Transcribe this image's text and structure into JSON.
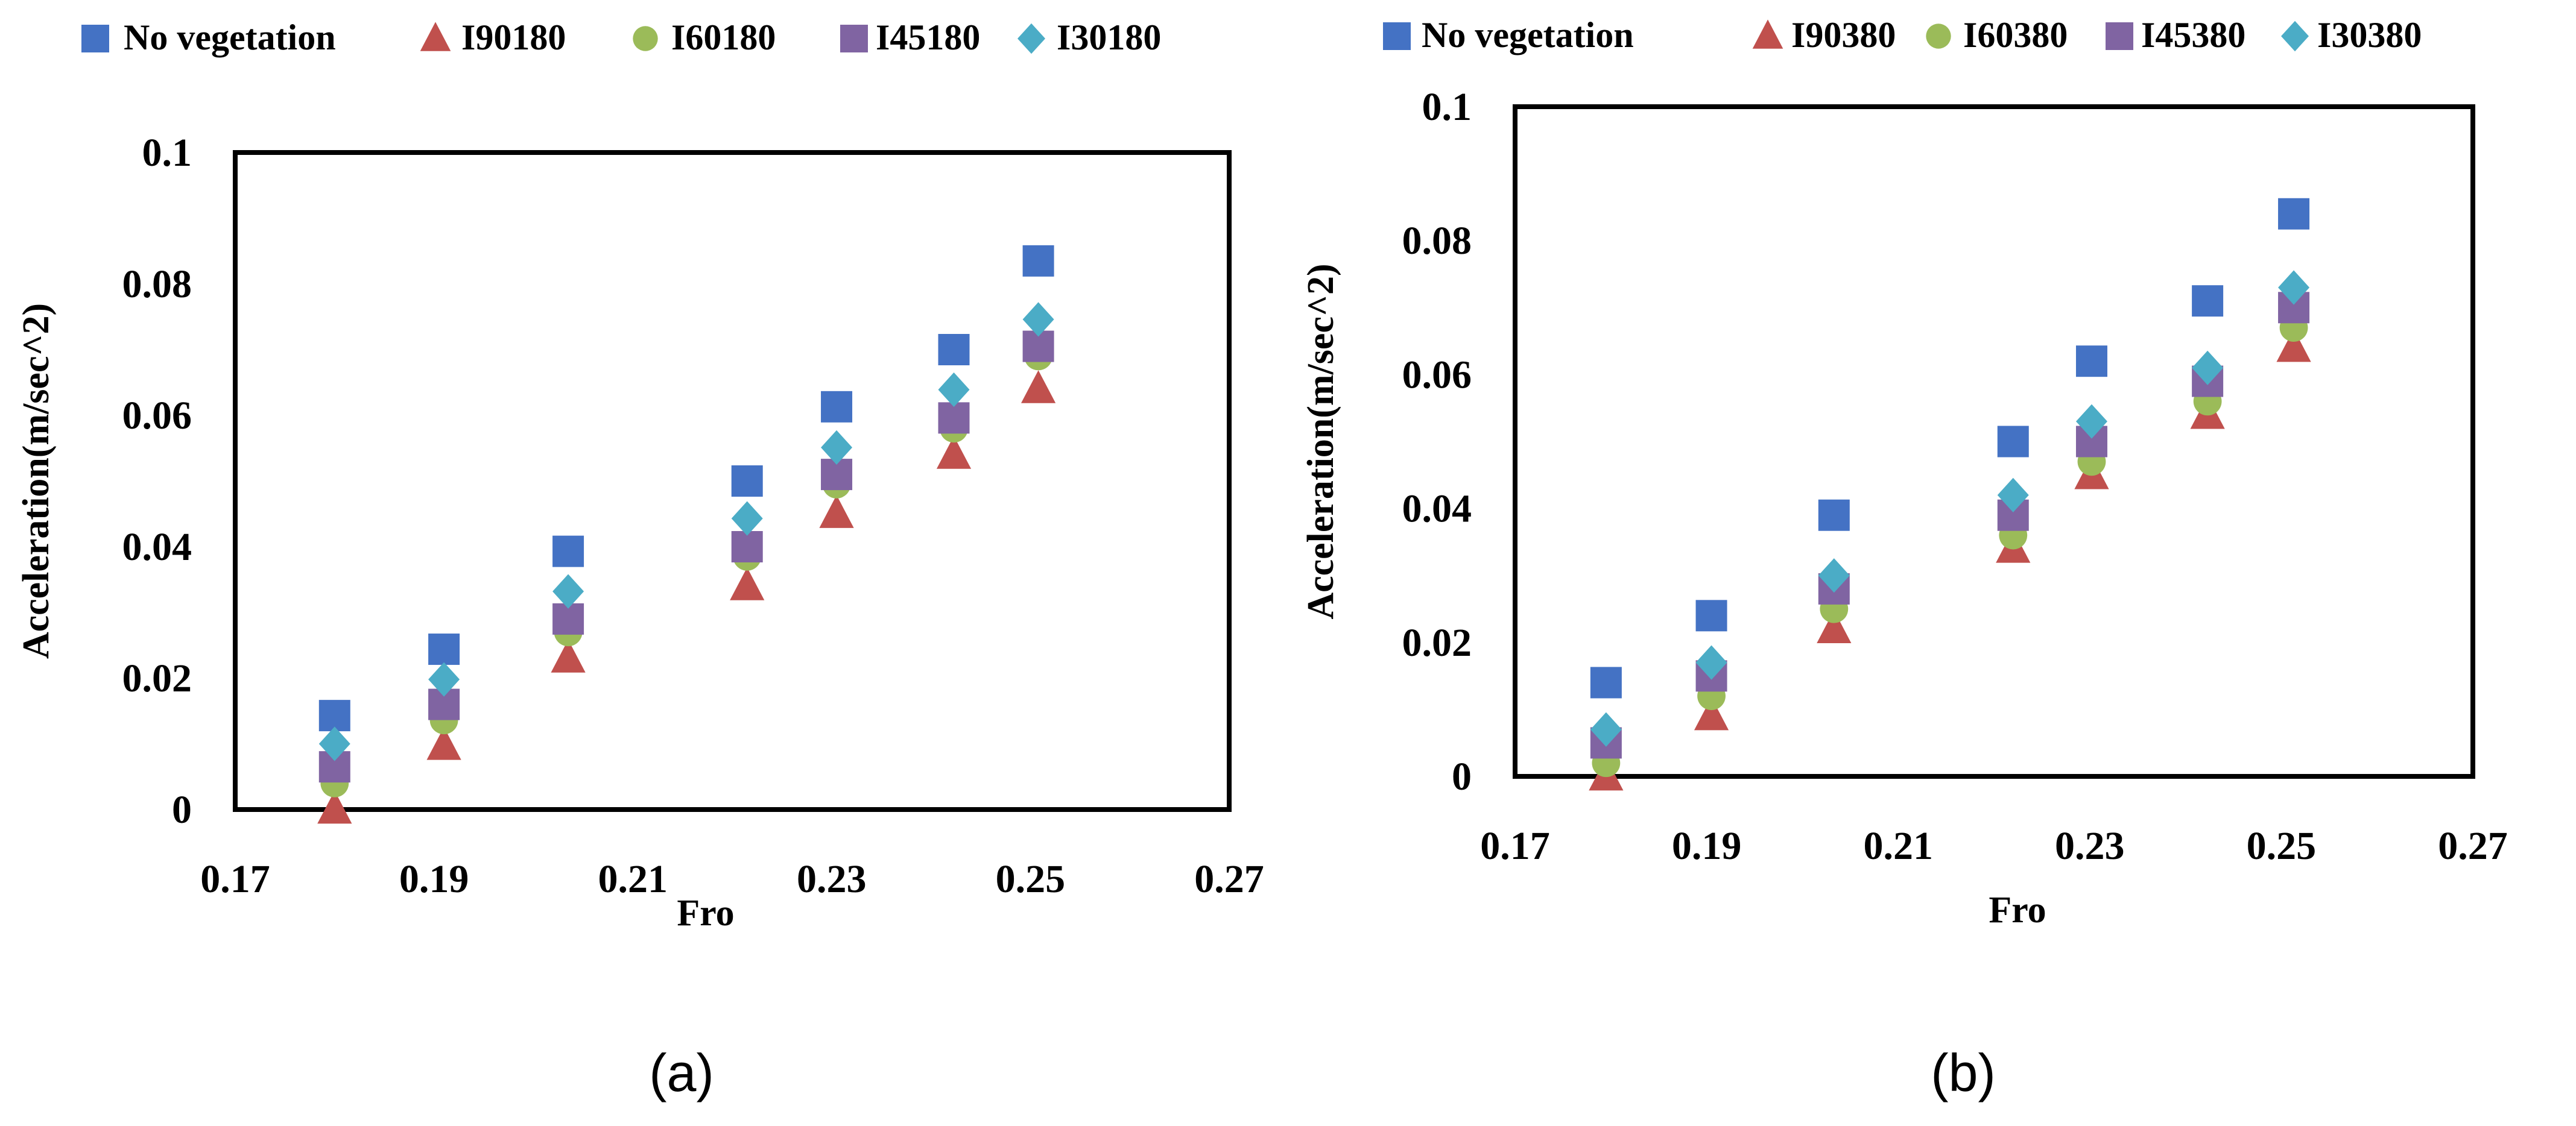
{
  "captions": [
    "(a)",
    "(b)"
  ],
  "colors": {
    "No vegetation": "#4472C4",
    "I90": "#C0504D",
    "I60": "#9BBB59",
    "I45": "#8064A2",
    "I30": "#4BACC6"
  },
  "chart_data": [
    {
      "type": "scatter",
      "title": "",
      "xlabel": "Fro",
      "ylabel": "Acceleration(m/sec^2)",
      "xlim": [
        0.17,
        0.27
      ],
      "ylim": [
        0,
        0.1
      ],
      "xticks": [
        "0.17",
        "0.19",
        "0.21",
        "0.23",
        "0.25",
        "0.27"
      ],
      "yticks": [
        "0",
        "0.02",
        "0.04",
        "0.06",
        "0.08",
        "0.1"
      ],
      "grid": false,
      "legend": "top",
      "x": [
        0.18,
        0.191,
        0.2035,
        0.2215,
        0.2305,
        0.2423,
        0.2508
      ],
      "series": [
        {
          "name": "No vegetation",
          "marker": "square",
          "color": "#4472C4",
          "values": [
            0.0143,
            0.0244,
            0.0393,
            0.05,
            0.0613,
            0.07,
            0.0835
          ]
        },
        {
          "name": "I90180",
          "marker": "triangle",
          "color": "#C0504D",
          "values": [
            0.0,
            0.0097,
            0.023,
            0.034,
            0.045,
            0.054,
            0.064
          ]
        },
        {
          "name": "I60180",
          "marker": "circle",
          "color": "#9BBB59",
          "values": [
            0.004,
            0.0136,
            0.027,
            0.0385,
            0.0495,
            0.058,
            0.069
          ]
        },
        {
          "name": "I45180",
          "marker": "square",
          "color": "#8064A2",
          "values": [
            0.0065,
            0.016,
            0.029,
            0.04,
            0.051,
            0.0596,
            0.0705
          ]
        },
        {
          "name": "I30180",
          "marker": "diamond",
          "color": "#4BACC6",
          "values": [
            0.01,
            0.0198,
            0.0332,
            0.0443,
            0.0551,
            0.0639,
            0.0746
          ]
        }
      ]
    },
    {
      "type": "scatter",
      "title": "",
      "xlabel": "Fro",
      "ylabel": "Acceleration(m/sec^2)",
      "xlim": [
        0.17,
        0.27
      ],
      "ylim": [
        0,
        0.1
      ],
      "xticks": [
        "0.17",
        "0.19",
        "0.21",
        "0.23",
        "0.25",
        "0.27"
      ],
      "yticks": [
        "0",
        "0.02",
        "0.04",
        "0.06",
        "0.08",
        "0.1"
      ],
      "grid": false,
      "legend": "top",
      "x": [
        0.1795,
        0.1905,
        0.2033,
        0.222,
        0.2302,
        0.2423,
        0.2513
      ],
      "series": [
        {
          "name": "No vegetation",
          "marker": "square",
          "color": "#4472C4",
          "values": [
            0.014,
            0.024,
            0.039,
            0.05,
            0.062,
            0.071,
            0.084
          ]
        },
        {
          "name": "I90380",
          "marker": "triangle",
          "color": "#C0504D",
          "values": [
            0.0,
            0.009,
            0.022,
            0.034,
            0.045,
            0.054,
            0.064
          ]
        },
        {
          "name": "I60380",
          "marker": "circle",
          "color": "#9BBB59",
          "values": [
            0.002,
            0.012,
            0.025,
            0.036,
            0.047,
            0.056,
            0.067
          ]
        },
        {
          "name": "I45380",
          "marker": "square",
          "color": "#8064A2",
          "values": [
            0.005,
            0.015,
            0.028,
            0.039,
            0.05,
            0.059,
            0.07
          ]
        },
        {
          "name": "I30380",
          "marker": "diamond",
          "color": "#4BACC6",
          "values": [
            0.007,
            0.017,
            0.03,
            0.042,
            0.053,
            0.061,
            0.073
          ]
        }
      ]
    }
  ]
}
